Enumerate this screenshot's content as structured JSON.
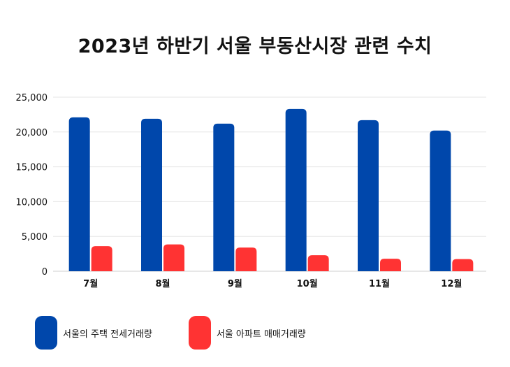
{
  "chart_data": {
    "type": "bar",
    "title": "2023년 하반기 서울 부동산시장 관련 수치",
    "categories": [
      "7월",
      "8월",
      "9월",
      "10월",
      "11월",
      "12월"
    ],
    "series": [
      {
        "name": "서울의 주택 전세거래량",
        "color": "#0047ab",
        "values": [
          22100,
          21900,
          21200,
          23300,
          21700,
          20200
        ]
      },
      {
        "name": "서울 아파트 매매거래량",
        "color": "#ff3333",
        "values": [
          3600,
          3850,
          3400,
          2300,
          1800,
          1750
        ]
      }
    ],
    "yticks": [
      "0",
      "5,000",
      "10,000",
      "15,000",
      "20,000",
      "25,000"
    ],
    "ylim": [
      0,
      25000
    ],
    "grid": true,
    "legend_position": "bottom-left"
  }
}
